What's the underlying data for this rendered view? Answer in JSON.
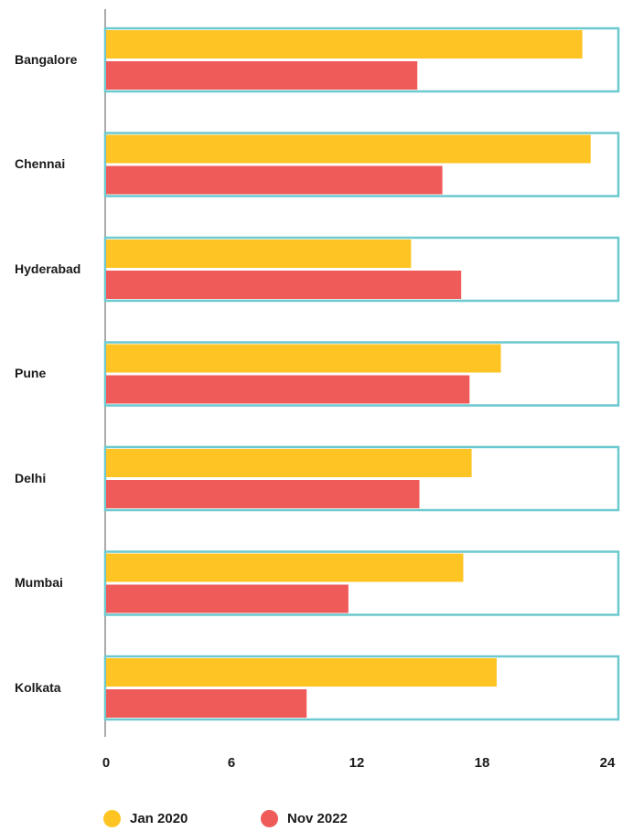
{
  "chart_data": {
    "type": "bar",
    "orientation": "horizontal",
    "categories": [
      "Bangalore",
      "Chennai",
      "Hyderabad",
      "Pune",
      "Delhi",
      "Mumbai",
      "Kolkata"
    ],
    "series": [
      {
        "name": "Jan 2020",
        "color": "#FEC423",
        "values": [
          22.8,
          23.2,
          14.6,
          18.9,
          17.5,
          17.1,
          18.7
        ]
      },
      {
        "name": "Nov 2022",
        "color": "#EF5B58",
        "values": [
          14.9,
          16.1,
          17.0,
          17.4,
          15.0,
          11.6,
          9.6
        ]
      }
    ],
    "xticks": [
      0,
      6,
      12,
      18,
      24
    ],
    "xlim": [
      0,
      24
    ],
    "grid": false,
    "legend_position": "bottom-left",
    "frame_color": "#6CC9CF"
  }
}
